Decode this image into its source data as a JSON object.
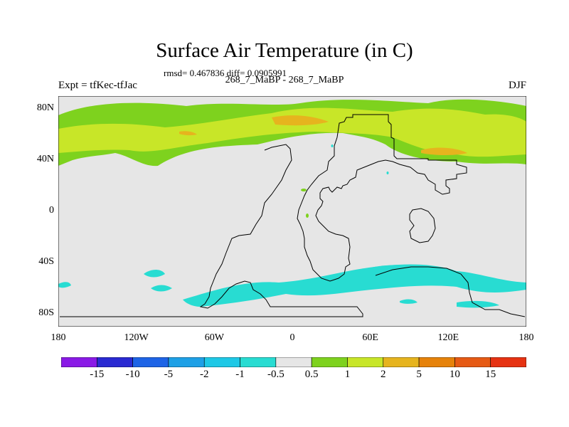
{
  "header": {
    "title": "Surface Air Temperature (in C)",
    "stats": "rmsd= 0.467836 diff= 0.0905991",
    "subtitle": "268_7_MaBP - 268_7_MaBP",
    "left_label": "Expt = tfKec-tfJac",
    "right_label": "DJF"
  },
  "chart_data": {
    "type": "heatmap",
    "title": "Surface Air Temperature (in C)",
    "x_range": [
      -180,
      180
    ],
    "y_range": [
      -90,
      90
    ],
    "x_ticks": [
      {
        "value": -180,
        "label": "180"
      },
      {
        "value": -120,
        "label": "120W"
      },
      {
        "value": -60,
        "label": "60W"
      },
      {
        "value": 0,
        "label": "0"
      },
      {
        "value": 60,
        "label": "60E"
      },
      {
        "value": 120,
        "label": "120E"
      },
      {
        "value": 180,
        "label": "180"
      }
    ],
    "y_ticks": [
      {
        "value": 80,
        "label": "80N"
      },
      {
        "value": 40,
        "label": "40N"
      },
      {
        "value": 0,
        "label": "0"
      },
      {
        "value": -40,
        "label": "40S"
      },
      {
        "value": -80,
        "label": "80S"
      }
    ],
    "colorbar": {
      "labels": [
        "-15",
        "-10",
        "-5",
        "-2",
        "-1",
        "-0.5",
        "0.5",
        "1",
        "2",
        "5",
        "10",
        "15"
      ],
      "colors": [
        "#8a1ae6",
        "#2a2ad2",
        "#1e64e6",
        "#1ea0e6",
        "#1ec8e6",
        "#28dcd2",
        "#e6e6e6",
        "#7ed21e",
        "#c8e628",
        "#e6b41e",
        "#e6820a",
        "#e65a14",
        "#e63212"
      ]
    },
    "fields": {
      "background": "#e6e6e6",
      "band_positive": "#7ed21e",
      "band_positive_core": "#c8e628",
      "band_positive_peak": "#e6b41e",
      "band_negative": "#28dcd2",
      "coastline": "#000000"
    }
  }
}
